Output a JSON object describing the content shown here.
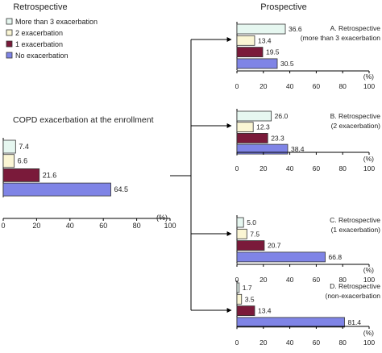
{
  "headers": {
    "left": "Retrospective",
    "right": "Prospective"
  },
  "legend": {
    "items": [
      {
        "label": "More than 3 exacerbation",
        "color": "#e6f7f0"
      },
      {
        "label": "2 exacerbation",
        "color": "#fbf6d4"
      },
      {
        "label": "1 exacerbation",
        "color": "#7a1a3a"
      },
      {
        "label": "No exacerbation",
        "color": "#7f84e6"
      }
    ]
  },
  "chart_data": [
    {
      "type": "bar",
      "orientation": "horizontal",
      "title": "COPD exacerbation at the enrollment",
      "unit_label": "(%)",
      "categories": [
        "More than 3 exacerbation",
        "2 exacerbation",
        "1 exacerbation",
        "No exacerbation"
      ],
      "values": [
        7.4,
        6.6,
        21.6,
        64.5
      ],
      "value_labels": [
        "7.4",
        "6.6",
        "21.6",
        "64.5"
      ],
      "xlim": [
        0,
        100
      ],
      "ticks": [
        "0",
        "20",
        "40",
        "60",
        "80",
        "100"
      ]
    },
    {
      "type": "bar",
      "orientation": "horizontal",
      "note_lines": [
        "A. Retrospective",
        "(more than 3 exacerbation"
      ],
      "unit_label": "(%)",
      "categories": [
        "More than 3 exacerbation",
        "2 exacerbation",
        "1 exacerbation",
        "No exacerbation"
      ],
      "values": [
        36.6,
        13.4,
        19.5,
        30.5
      ],
      "value_labels": [
        "36.6",
        "13.4",
        "19.5",
        "30.5"
      ],
      "xlim": [
        0,
        100
      ],
      "ticks": [
        "0",
        "20",
        "40",
        "60",
        "80",
        "100"
      ]
    },
    {
      "type": "bar",
      "orientation": "horizontal",
      "note_lines": [
        "B. Retrospective",
        "(2 exacerbation)"
      ],
      "unit_label": "(%)",
      "categories": [
        "More than 3 exacerbation",
        "2 exacerbation",
        "1 exacerbation",
        "No exacerbation"
      ],
      "values": [
        26.0,
        12.3,
        23.3,
        38.4
      ],
      "value_labels": [
        "26.0",
        "12.3",
        "23.3",
        "38.4"
      ],
      "xlim": [
        0,
        100
      ],
      "ticks": [
        "0",
        "20",
        "40",
        "60",
        "80",
        "100"
      ]
    },
    {
      "type": "bar",
      "orientation": "horizontal",
      "note_lines": [
        "C. Retrospective",
        "(1 exacerbation)"
      ],
      "unit_label": "(%)",
      "categories": [
        "More than 3 exacerbation",
        "2 exacerbation",
        "1 exacerbation",
        "No exacerbation"
      ],
      "values": [
        5.0,
        7.5,
        20.7,
        66.8
      ],
      "value_labels": [
        "5.0",
        "7.5",
        "20.7",
        "66.8"
      ],
      "xlim": [
        0,
        100
      ],
      "ticks": [
        "0",
        "20",
        "40",
        "60",
        "80",
        "100"
      ]
    },
    {
      "type": "bar",
      "orientation": "horizontal",
      "note_lines": [
        "D. Retrospective",
        "(non-exacerbation"
      ],
      "unit_label": "(%)",
      "categories": [
        "More than 3 exacerbation",
        "2 exacerbation",
        "1 exacerbation",
        "No exacerbation"
      ],
      "values": [
        1.7,
        3.5,
        13.4,
        81.4
      ],
      "value_labels": [
        "1.7",
        "3.5",
        "13.4",
        "81.4"
      ],
      "xlim": [
        0,
        100
      ],
      "ticks": [
        "0",
        "20",
        "40",
        "60",
        "80",
        "100"
      ]
    }
  ]
}
